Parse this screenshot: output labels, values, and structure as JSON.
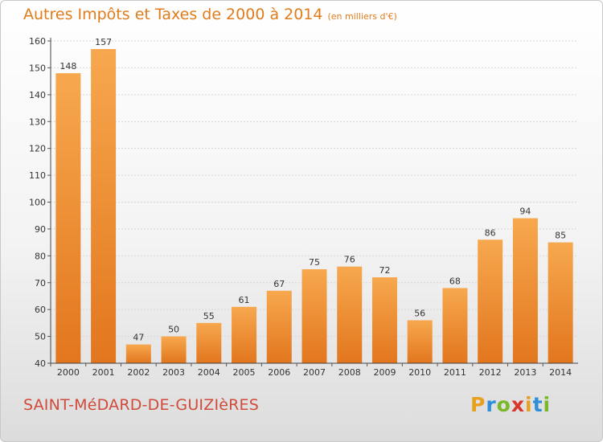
{
  "title": "Autres Impôts et Taxes de 2000 à 2014",
  "subtitle": "(en milliers d'€)",
  "commune": "SAINT-MéDARD-DE-GUIZIèRES",
  "logo": {
    "letters": [
      "P",
      "r",
      "o",
      "x",
      "i",
      "t",
      "i"
    ],
    "colors": [
      "#e8a020",
      "#2e8fd8",
      "#79b829",
      "#d8362a",
      "#e8a020",
      "#2e8fd8",
      "#79b829"
    ]
  },
  "colors": {
    "bar_top": "#f7a84e",
    "bar_bottom": "#e2761e",
    "title": "#e07c1b",
    "commune": "#d14a3a"
  },
  "chart_data": {
    "type": "bar",
    "categories": [
      "2000",
      "2001",
      "2002",
      "2003",
      "2004",
      "2005",
      "2006",
      "2007",
      "2008",
      "2009",
      "2010",
      "2011",
      "2012",
      "2013",
      "2014"
    ],
    "values": [
      148,
      157,
      47,
      50,
      55,
      61,
      67,
      75,
      76,
      72,
      56,
      68,
      86,
      94,
      85
    ],
    "ylim": [
      40,
      160
    ],
    "yticks": [
      40,
      50,
      60,
      70,
      80,
      90,
      100,
      110,
      120,
      130,
      140,
      150,
      160
    ],
    "grid": true
  }
}
